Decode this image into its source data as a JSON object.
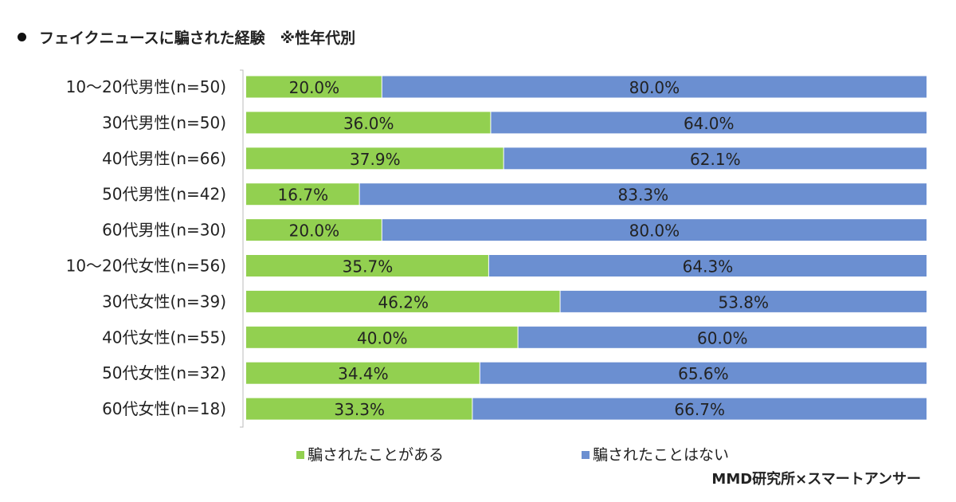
{
  "chart_data": {
    "type": "bar",
    "stacked": true,
    "orientation": "horizontal",
    "title": "フェイクニュースに騙された経験　※性年代別",
    "categories": [
      "10～20代男性(n=50)",
      "30代男性(n=50)",
      "40代男性(n=66)",
      "50代男性(n=42)",
      "60代男性(n=30)",
      "10～20代女性(n=56)",
      "30代女性(n=39)",
      "40代女性(n=55)",
      "50代女性(n=32)",
      "60代女性(n=18)"
    ],
    "series": [
      {
        "name": "騙されたことがある",
        "color": "#92d050",
        "values": [
          20.0,
          36.0,
          37.9,
          16.7,
          20.0,
          35.7,
          46.2,
          40.0,
          34.4,
          33.3
        ],
        "labels": [
          "20.0%",
          "36.0%",
          "37.9%",
          "16.7%",
          "20.0%",
          "35.7%",
          "46.2%",
          "40.0%",
          "34.4%",
          "33.3%"
        ]
      },
      {
        "name": "騙されたことはない",
        "color": "#6b8fd1",
        "values": [
          80.0,
          64.0,
          62.1,
          83.3,
          80.0,
          64.3,
          53.8,
          60.0,
          65.6,
          66.7
        ],
        "labels": [
          "80.0%",
          "64.0%",
          "62.1%",
          "83.3%",
          "80.0%",
          "64.3%",
          "53.8%",
          "60.0%",
          "65.6%",
          "66.7%"
        ]
      }
    ],
    "xlim": [
      0,
      100
    ],
    "legend": "bottom",
    "source": "MMD研究所×スマートアンサー"
  }
}
